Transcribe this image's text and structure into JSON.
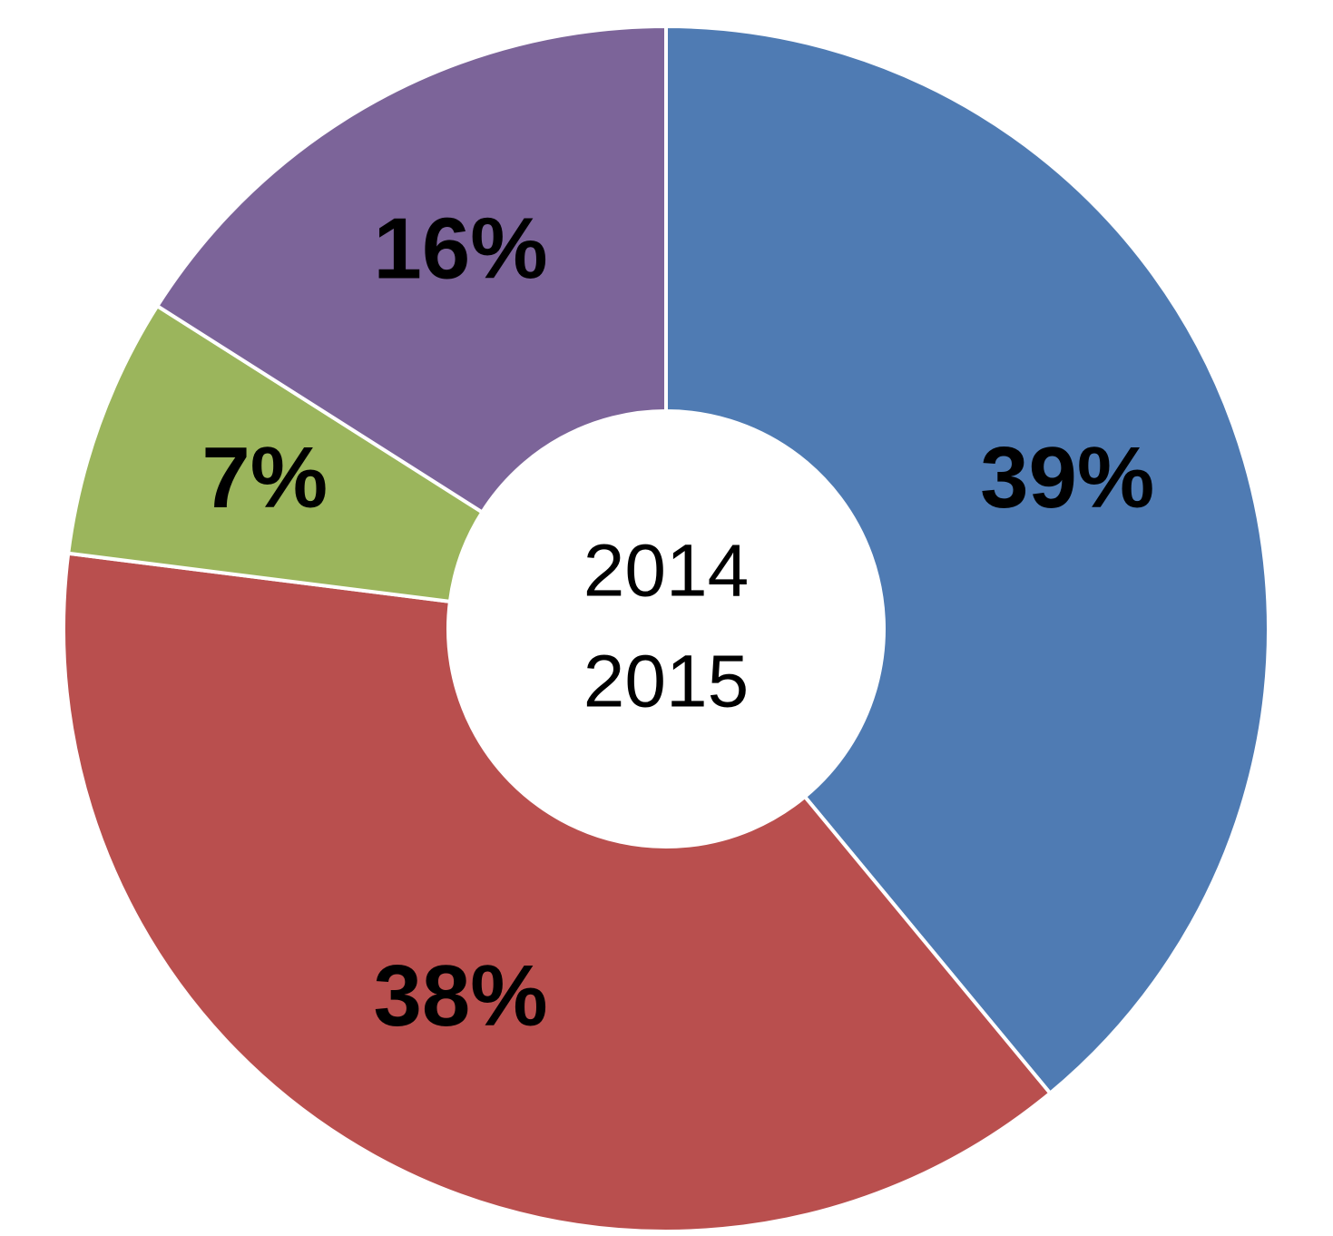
{
  "chart_data": {
    "type": "donut",
    "center_text": [
      "2014",
      "2015"
    ],
    "values": [
      39,
      38,
      7,
      16
    ],
    "value_labels": [
      "39%",
      "38%",
      "7%",
      "16%"
    ],
    "colors": [
      "#4f7bb3",
      "#b94f4e",
      "#9bb55c",
      "#7c6499"
    ]
  }
}
